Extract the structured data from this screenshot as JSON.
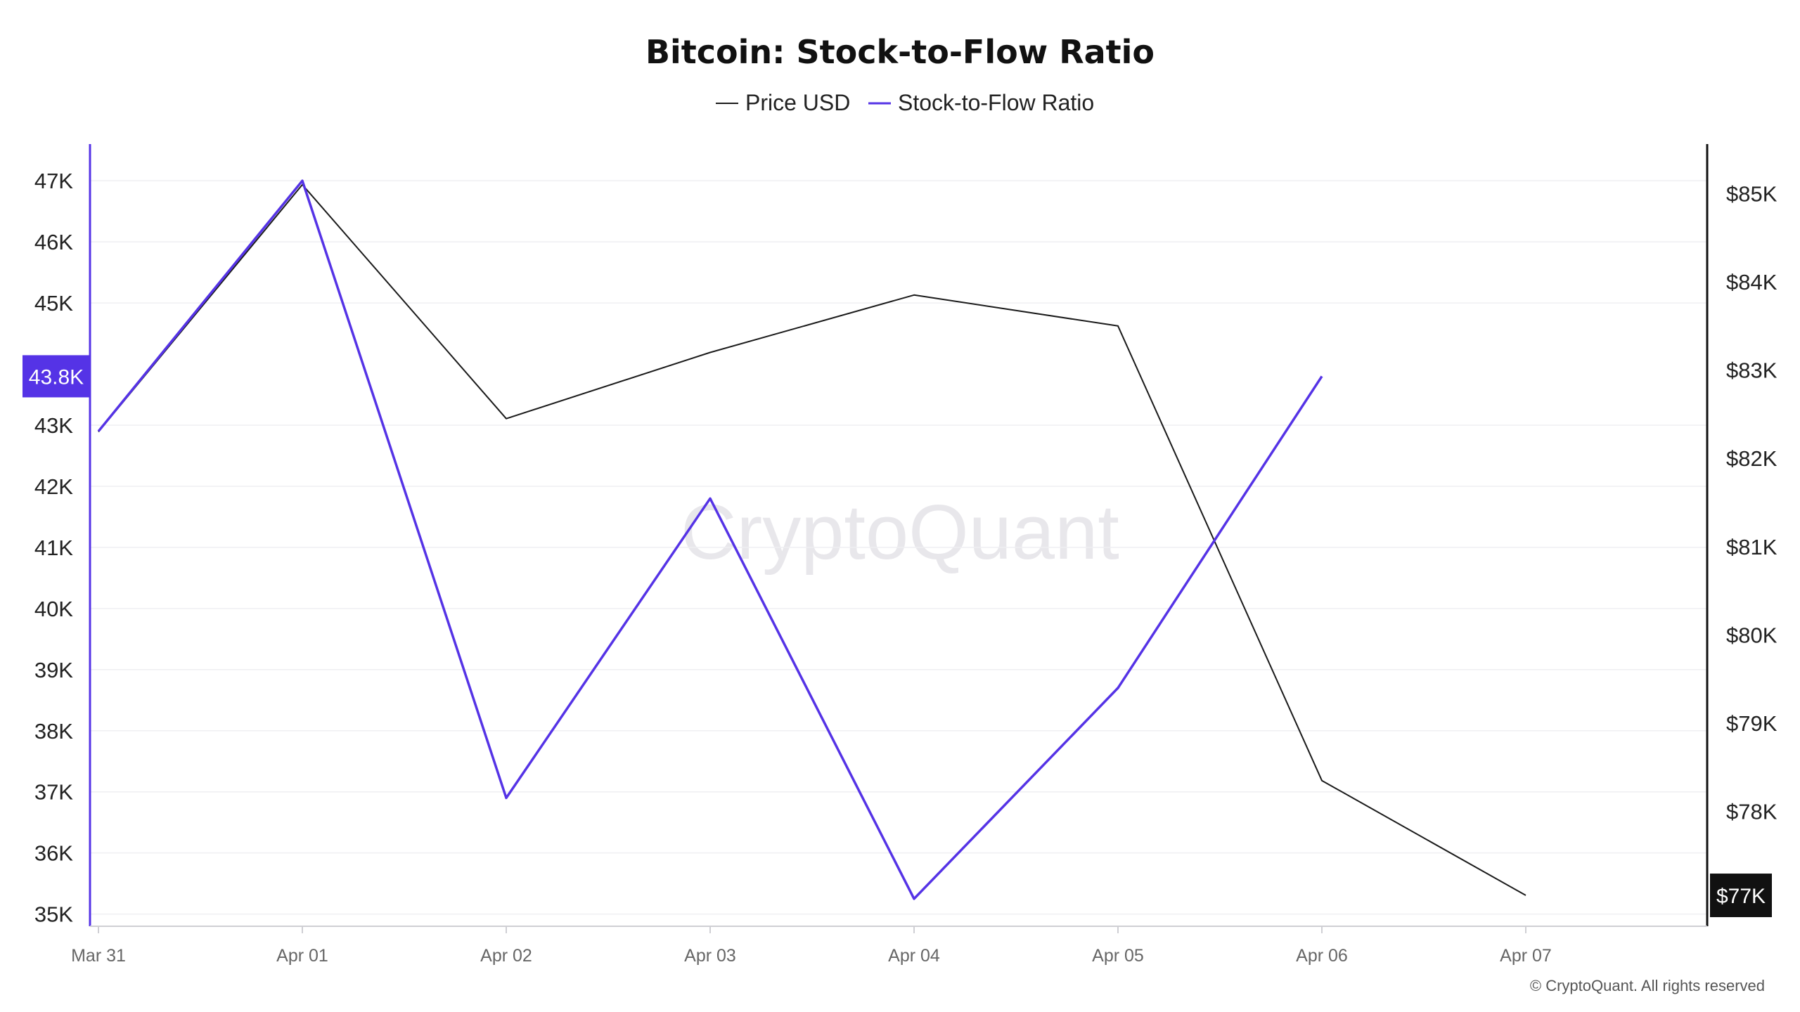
{
  "chart_data": {
    "type": "line",
    "title": "Bitcoin: Stock-to-Flow Ratio",
    "x": [
      "Mar 31",
      "Apr 01",
      "Apr 02",
      "Apr 03",
      "Apr 04",
      "Apr 05",
      "Apr 06",
      "Apr 07"
    ],
    "series": [
      {
        "name": "Price USD",
        "axis": "right",
        "color": "#1a1a1a",
        "values": [
          82300,
          85100,
          82450,
          83200,
          83850,
          83500,
          78350,
          77050
        ]
      },
      {
        "name": "Stock-to-Flow Ratio",
        "axis": "left",
        "color": "#5533e6",
        "values": [
          42900,
          47000,
          36900,
          41800,
          35250,
          38700,
          43800,
          null
        ]
      }
    ],
    "left_axis": {
      "ylim": [
        34800,
        47600
      ],
      "ticks": [
        "35K",
        "36K",
        "37K",
        "38K",
        "39K",
        "40K",
        "41K",
        "42K",
        "43K",
        "45K",
        "46K",
        "47K"
      ],
      "tick_values": [
        35000,
        36000,
        37000,
        38000,
        39000,
        40000,
        41000,
        42000,
        43000,
        45000,
        46000,
        47000
      ]
    },
    "right_axis": {
      "ylim": [
        76700,
        85560
      ],
      "ticks": [
        "$78K",
        "$79K",
        "$80K",
        "$81K",
        "$82K",
        "$83K",
        "$84K",
        "$85K"
      ],
      "tick_values": [
        78000,
        79000,
        80000,
        81000,
        82000,
        83000,
        84000,
        85000
      ]
    },
    "left_badge": {
      "label": "43.8K",
      "value": 43800,
      "color": "#5533e6"
    },
    "right_badge": {
      "label": "$77K",
      "value": 77050,
      "color": "#111111"
    },
    "legend_position": "top-center",
    "grid": true
  },
  "legend": {
    "price_label": "Price USD",
    "sf_label": "Stock-to-Flow Ratio"
  },
  "watermark": "CryptoQuant",
  "copyright": "© CryptoQuant. All rights reserved"
}
